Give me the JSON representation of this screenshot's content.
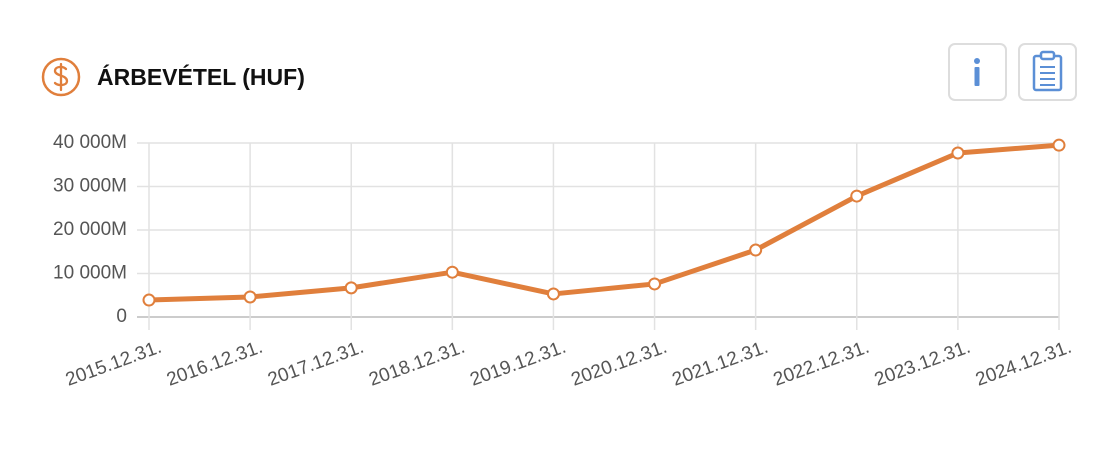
{
  "chart_data": {
    "type": "line",
    "title": "ÁRBEVÉTEL (HUF)",
    "categories": [
      "2015.12.31.",
      "2016.12.31.",
      "2017.12.31.",
      "2018.12.31.",
      "2019.12.31.",
      "2020.12.31.",
      "2021.12.31.",
      "2022.12.31.",
      "2023.12.31.",
      "2024.12.31."
    ],
    "values": [
      3900,
      4600,
      6700,
      10300,
      5300,
      7600,
      15400,
      27800,
      37700,
      39500
    ],
    "color": "#e07f3c",
    "ylim": [
      0,
      40000
    ],
    "yticks": [
      0,
      {
        "value": 10000,
        "label": "10 000M"
      },
      {
        "value": 20000,
        "label": "20 000M"
      },
      {
        "value": 30000,
        "label": "30 000M"
      },
      {
        "value": 40000,
        "label": "40 000M"
      }
    ],
    "grid": true
  }
}
